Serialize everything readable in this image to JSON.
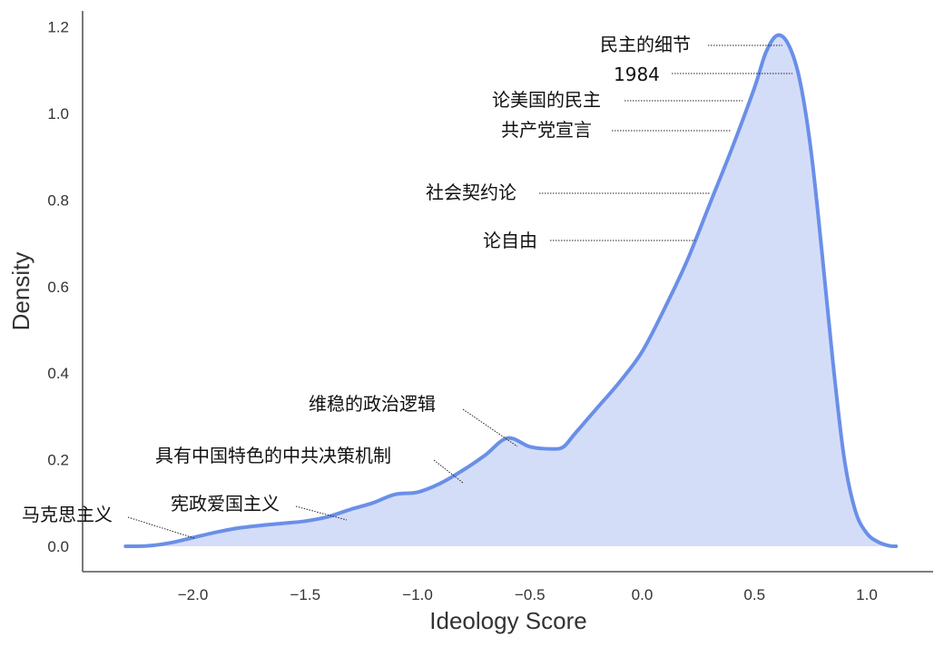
{
  "chart_data": {
    "type": "area",
    "title": "",
    "xlabel": "Ideology Score",
    "ylabel": "Density",
    "xlim": [
      -2.5,
      1.3
    ],
    "ylim": [
      -0.06,
      1.22
    ],
    "xticks": [
      -2.0,
      -1.5,
      -1.0,
      -0.5,
      0.0,
      0.5,
      1.0
    ],
    "xtick_labels": [
      "−2.0",
      "−1.5",
      "−1.0",
      "−0.5",
      "0.0",
      "0.5",
      "1.0"
    ],
    "yticks": [
      0.0,
      0.2,
      0.4,
      0.6,
      0.8,
      1.0,
      1.2
    ],
    "ytick_labels": [
      "0.0",
      "0.2",
      "0.4",
      "0.6",
      "0.8",
      "1.0",
      "1.2"
    ],
    "grid": false,
    "colors": {
      "line": "#6a8fe8",
      "fill": "#d4ddf8"
    },
    "series": [
      {
        "x": [
          -2.3,
          -2.2,
          -2.1,
          -2.0,
          -1.9,
          -1.8,
          -1.7,
          -1.6,
          -1.5,
          -1.4,
          -1.3,
          -1.2,
          -1.1,
          -1.0,
          -0.9,
          -0.8,
          -0.7,
          -0.6,
          -0.5,
          -0.4,
          -0.35,
          -0.3,
          -0.2,
          -0.1,
          0.0,
          0.1,
          0.2,
          0.3,
          0.4,
          0.5,
          0.55,
          0.6,
          0.65,
          0.7,
          0.75,
          0.8,
          0.85,
          0.9,
          0.95,
          1.0,
          1.05,
          1.1,
          1.13
        ],
        "y": [
          0.0,
          0.001,
          0.008,
          0.02,
          0.032,
          0.042,
          0.048,
          0.053,
          0.058,
          0.068,
          0.085,
          0.1,
          0.12,
          0.125,
          0.145,
          0.175,
          0.21,
          0.25,
          0.23,
          0.225,
          0.23,
          0.26,
          0.32,
          0.38,
          0.45,
          0.55,
          0.66,
          0.79,
          0.92,
          1.06,
          1.14,
          1.18,
          1.16,
          1.08,
          0.92,
          0.68,
          0.42,
          0.2,
          0.08,
          0.03,
          0.01,
          0.001,
          0.0
        ]
      }
    ],
    "annotations": [
      {
        "text": "民主的细节",
        "x": 0.62,
        "y": 1.155
      },
      {
        "text": "1984",
        "x": 0.69,
        "y": 1.095
      },
      {
        "text": "论美国的民主",
        "x": 0.45,
        "y": 1.03
      },
      {
        "text": "共产党宣言",
        "x": 0.42,
        "y": 0.965
      },
      {
        "text": "社会契约论",
        "x": 0.3,
        "y": 0.82
      },
      {
        "text": "论自由",
        "x": 0.24,
        "y": 0.71
      },
      {
        "text": "维稳的政治逻辑",
        "x": -0.55,
        "y": 0.235
      },
      {
        "text": "具有中国特色的中共决策机制",
        "x": -0.8,
        "y": 0.15
      },
      {
        "text": "宪政爱国主义",
        "x": -1.32,
        "y": 0.062
      },
      {
        "text": "马克思主义",
        "x": -1.98,
        "y": 0.018
      }
    ]
  }
}
